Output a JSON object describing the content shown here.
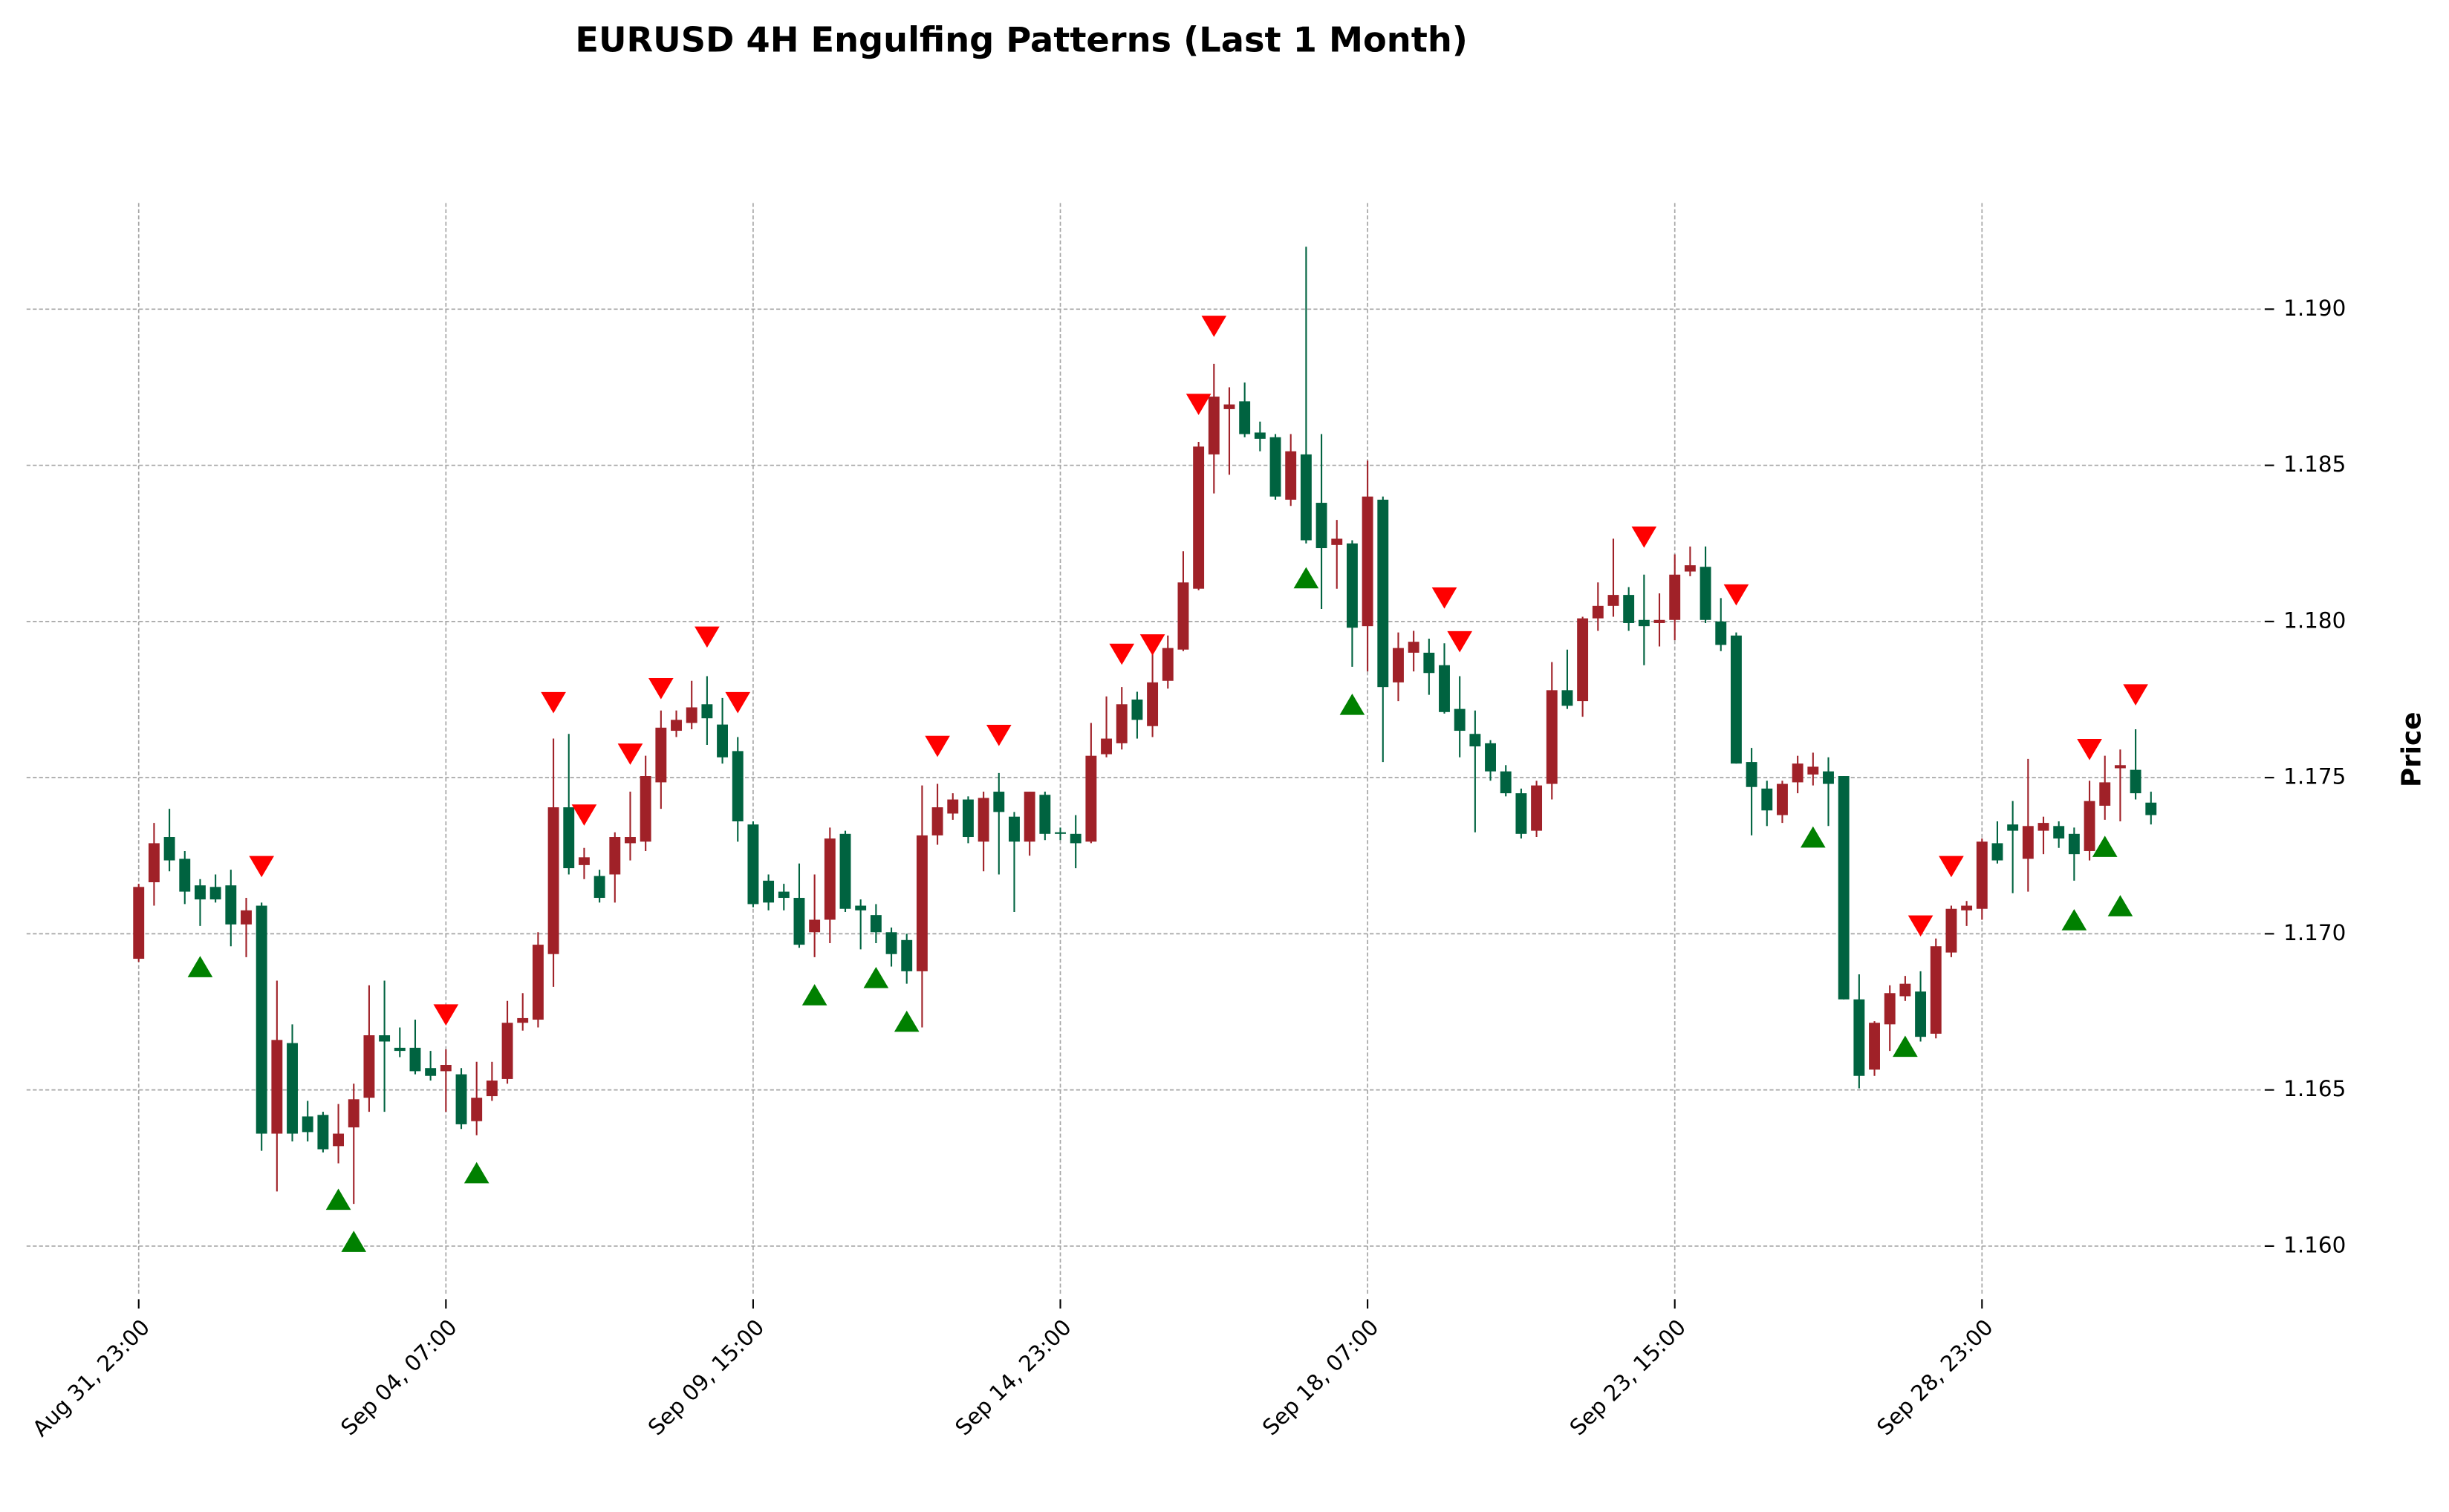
{
  "chart_data": {
    "type": "candlestick",
    "title": "EURUSD 4H Engulfing Patterns (Last 1 Month)",
    "y_label": "Price",
    "up_color": "#a02128",
    "down_color": "#006340",
    "grid": true,
    "xlim": [
      -7.3,
      138.2
    ],
    "xticks": [
      {
        "value": 0,
        "label": "Aug 31, 23:00"
      },
      {
        "value": 20,
        "label": "Sep 04, 07:00"
      },
      {
        "value": 40,
        "label": "Sep 09, 15:00"
      },
      {
        "value": 60,
        "label": "Sep 14, 23:00"
      },
      {
        "value": 80,
        "label": "Sep 18, 07:00"
      },
      {
        "value": 100,
        "label": "Sep 23, 15:00"
      },
      {
        "value": 120,
        "label": "Sep 28, 23:00"
      }
    ],
    "ylim": [
      1.1584,
      1.1934
    ],
    "yticks": [
      {
        "value": 1.16,
        "label": "1.160"
      },
      {
        "value": 1.165,
        "label": "1.165"
      },
      {
        "value": 1.17,
        "label": "1.170"
      },
      {
        "value": 1.175,
        "label": "1.175"
      },
      {
        "value": 1.18,
        "label": "1.180"
      },
      {
        "value": 1.185,
        "label": "1.185"
      },
      {
        "value": 1.19,
        "label": "1.190"
      }
    ],
    "open": [
      1.1692,
      1.17165,
      1.1731,
      1.1724,
      1.17155,
      1.1715,
      1.17155,
      1.1703,
      1.1709,
      1.1636,
      1.1665,
      1.16415,
      1.1642,
      1.1632,
      1.1638,
      1.16475,
      1.16675,
      1.16635,
      1.16635,
      1.1657,
      1.1656,
      1.1655,
      1.164,
      1.1648,
      1.16535,
      1.16715,
      1.16725,
      1.16935,
      1.17405,
      1.1722,
      1.17185,
      1.1719,
      1.1729,
      1.17295,
      1.17485,
      1.1765,
      1.17675,
      1.17735,
      1.1767,
      1.17585,
      1.1735,
      1.1717,
      1.17135,
      1.17115,
      1.17005,
      1.17045,
      1.1732,
      1.1709,
      1.1706,
      1.17005,
      1.1698,
      1.1688,
      1.17315,
      1.17385,
      1.1743,
      1.17295,
      1.17455,
      1.17375,
      1.17295,
      1.17445,
      1.17325,
      1.1732,
      1.17295,
      1.17575,
      1.1761,
      1.1775,
      1.17665,
      1.1781,
      1.1791,
      1.18105,
      1.18535,
      1.1868,
      1.18705,
      1.18605,
      1.1859,
      1.1839,
      1.18535,
      1.1838,
      1.18245,
      1.1825,
      1.17985,
      1.1839,
      1.17805,
      1.179,
      1.179,
      1.1786,
      1.1772,
      1.1764,
      1.1761,
      1.1752,
      1.1745,
      1.1733,
      1.1748,
      1.1778,
      1.17745,
      1.1801,
      1.1805,
      1.18085,
      1.18005,
      1.17995,
      1.18005,
      1.1816,
      1.18175,
      1.18,
      1.17955,
      1.1755,
      1.17465,
      1.1738,
      1.17485,
      1.1751,
      1.1752,
      1.17505,
      1.1679,
      1.16565,
      1.1671,
      1.168,
      1.16815,
      1.1668,
      1.1694,
      1.17075,
      1.1708,
      1.1729,
      1.1735,
      1.1724,
      1.1733,
      1.17345,
      1.1732,
      1.17265,
      1.1741,
      1.1753,
      1.17525,
      1.1742
    ],
    "high": [
      1.1716,
      1.17355,
      1.174,
      1.17265,
      1.17175,
      1.1719,
      1.17205,
      1.17115,
      1.171,
      1.1685,
      1.1671,
      1.16465,
      1.1643,
      1.16455,
      1.1652,
      1.16835,
      1.1685,
      1.167,
      1.16725,
      1.16625,
      1.1663,
      1.1657,
      1.1659,
      1.1659,
      1.16785,
      1.1681,
      1.17005,
      1.17625,
      1.1764,
      1.17275,
      1.17205,
      1.17325,
      1.17455,
      1.1757,
      1.17715,
      1.17715,
      1.1781,
      1.17825,
      1.17755,
      1.1763,
      1.1736,
      1.1719,
      1.1716,
      1.17225,
      1.1719,
      1.1734,
      1.1733,
      1.1711,
      1.17095,
      1.1702,
      1.17,
      1.17475,
      1.1748,
      1.1745,
      1.1744,
      1.17455,
      1.17515,
      1.1739,
      1.17455,
      1.17455,
      1.1734,
      1.1738,
      1.17675,
      1.1776,
      1.1779,
      1.17775,
      1.17915,
      1.17955,
      1.18225,
      1.18575,
      1.18825,
      1.1875,
      1.18765,
      1.1864,
      1.186,
      1.186,
      1.192,
      1.186,
      1.18325,
      1.1826,
      1.18515,
      1.184,
      1.17965,
      1.1797,
      1.17945,
      1.1793,
      1.17825,
      1.17715,
      1.1762,
      1.1754,
      1.17465,
      1.1749,
      1.1787,
      1.1791,
      1.18015,
      1.18125,
      1.18265,
      1.1811,
      1.1815,
      1.1809,
      1.18215,
      1.1824,
      1.1824,
      1.18075,
      1.17965,
      1.17595,
      1.1749,
      1.1749,
      1.1757,
      1.1758,
      1.17565,
      1.17505,
      1.1687,
      1.1672,
      1.16835,
      1.16865,
      1.1688,
      1.16985,
      1.1709,
      1.17105,
      1.17305,
      1.1736,
      1.17425,
      1.1756,
      1.17375,
      1.1736,
      1.1734,
      1.1749,
      1.1757,
      1.1759,
      1.17655,
      1.17455
    ],
    "low": [
      1.1691,
      1.1709,
      1.172,
      1.17095,
      1.17025,
      1.171,
      1.1696,
      1.16925,
      1.16305,
      1.16175,
      1.16335,
      1.16335,
      1.163,
      1.16265,
      1.16135,
      1.1643,
      1.1643,
      1.16605,
      1.1655,
      1.1653,
      1.1643,
      1.16375,
      1.16355,
      1.16465,
      1.1652,
      1.1669,
      1.167,
      1.1683,
      1.1719,
      1.17175,
      1.171,
      1.171,
      1.17235,
      1.17265,
      1.174,
      1.1763,
      1.17655,
      1.17605,
      1.17545,
      1.17295,
      1.17085,
      1.17075,
      1.17075,
      1.16955,
      1.16925,
      1.1697,
      1.1707,
      1.1695,
      1.1697,
      1.16895,
      1.1684,
      1.167,
      1.17285,
      1.17365,
      1.1729,
      1.172,
      1.1719,
      1.1707,
      1.1725,
      1.173,
      1.173,
      1.1721,
      1.1729,
      1.17565,
      1.1759,
      1.17625,
      1.1763,
      1.17785,
      1.17905,
      1.181,
      1.1841,
      1.1847,
      1.1859,
      1.18545,
      1.1839,
      1.1837,
      1.1825,
      1.1804,
      1.18105,
      1.17855,
      1.1784,
      1.1755,
      1.17745,
      1.1784,
      1.17765,
      1.17705,
      1.17565,
      1.17325,
      1.1749,
      1.1744,
      1.17305,
      1.1731,
      1.1743,
      1.1772,
      1.17695,
      1.1797,
      1.18015,
      1.1797,
      1.1786,
      1.1792,
      1.1794,
      1.18145,
      1.17995,
      1.17905,
      1.17545,
      1.17315,
      1.17345,
      1.17355,
      1.1745,
      1.17475,
      1.17345,
      1.1679,
      1.16505,
      1.16545,
      1.16625,
      1.16785,
      1.16655,
      1.16665,
      1.16925,
      1.17025,
      1.17045,
      1.17225,
      1.1713,
      1.17135,
      1.17255,
      1.17275,
      1.1717,
      1.17235,
      1.17365,
      1.1736,
      1.1743,
      1.1735
    ],
    "close": [
      1.1715,
      1.1729,
      1.17235,
      1.17135,
      1.1711,
      1.1711,
      1.1703,
      1.17075,
      1.1636,
      1.1666,
      1.1636,
      1.16365,
      1.1631,
      1.1636,
      1.1647,
      1.16675,
      1.16655,
      1.16625,
      1.1656,
      1.16545,
      1.1658,
      1.1639,
      1.16475,
      1.1653,
      1.16715,
      1.1673,
      1.16965,
      1.17405,
      1.1721,
      1.17245,
      1.17115,
      1.1731,
      1.1731,
      1.17505,
      1.1766,
      1.17685,
      1.17725,
      1.1769,
      1.17565,
      1.1736,
      1.17095,
      1.171,
      1.17115,
      1.16965,
      1.17045,
      1.17305,
      1.1708,
      1.17075,
      1.17005,
      1.16935,
      1.1688,
      1.17315,
      1.17405,
      1.1743,
      1.1731,
      1.17435,
      1.1739,
      1.17295,
      1.17455,
      1.1732,
      1.1732,
      1.1729,
      1.1757,
      1.17625,
      1.17735,
      1.17685,
      1.17805,
      1.17915,
      1.18125,
      1.1856,
      1.1872,
      1.18695,
      1.186,
      1.18585,
      1.184,
      1.18545,
      1.1826,
      1.18235,
      1.18265,
      1.1798,
      1.184,
      1.1779,
      1.17915,
      1.17935,
      1.17835,
      1.1771,
      1.1765,
      1.176,
      1.1752,
      1.1745,
      1.1732,
      1.17475,
      1.1778,
      1.1773,
      1.1801,
      1.1805,
      1.18085,
      1.17995,
      1.17985,
      1.18005,
      1.1815,
      1.1818,
      1.18005,
      1.17925,
      1.17545,
      1.1747,
      1.17395,
      1.1748,
      1.17545,
      1.17535,
      1.1748,
      1.1679,
      1.16545,
      1.16715,
      1.1681,
      1.1684,
      1.1667,
      1.1696,
      1.1708,
      1.1709,
      1.17295,
      1.17235,
      1.1733,
      1.17345,
      1.17355,
      1.17305,
      1.17255,
      1.17425,
      1.17485,
      1.1754,
      1.1745,
      1.1738
    ],
    "bearish_markers": {
      "color": "#ff0000",
      "x": [
        8,
        20,
        27,
        29,
        32,
        34,
        37,
        39,
        52,
        56,
        64,
        66,
        69,
        70,
        85,
        86,
        98,
        104,
        116,
        118,
        127,
        130
      ],
      "values": [
        1.17215,
        1.1674,
        1.1774,
        1.1738,
        1.17575,
        1.17785,
        1.1795,
        1.1774,
        1.176,
        1.17635,
        1.17895,
        1.17925,
        1.18695,
        1.18945,
        1.18075,
        1.17935,
        1.1827,
        1.18085,
        1.17025,
        1.17215,
        1.1759,
        1.17765
      ]
    },
    "bullish_markers": {
      "color": "#008000",
      "x": [
        4,
        13,
        14,
        22,
        44,
        48,
        50,
        76,
        79,
        109,
        115,
        126,
        128,
        129
      ],
      "values": [
        1.16895,
        1.1615,
        1.16015,
        1.16235,
        1.16805,
        1.1686,
        1.1672,
        1.1814,
        1.17735,
        1.1731,
        1.1664,
        1.17045,
        1.1728,
        1.1709
      ]
    }
  }
}
